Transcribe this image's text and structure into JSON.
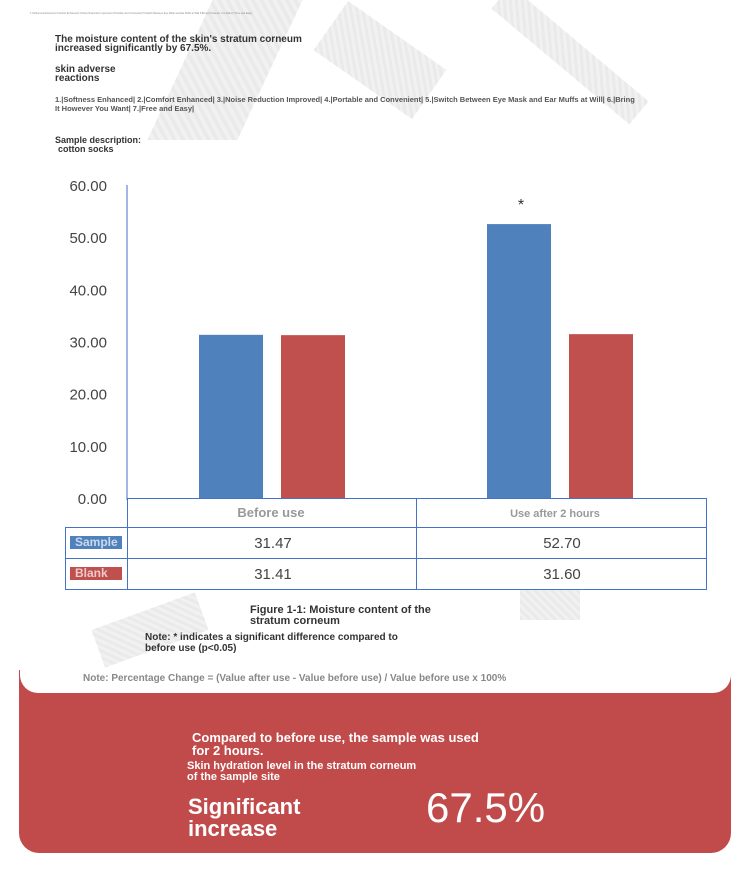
{
  "header": {
    "tiny_text": "1.Softness Enhanced| 2.Comfort Enhanced| 3.Noise Reduction Improved| 4.Portable and Convenient| 5.Switch Between Eye Mask and Ear Muffs at Will| 6.Bring It However You Want| 7.Free and Easy|",
    "moisture_heading": "The moisture content of the skin's stratum corneum increased significantly by 67.5%.",
    "adverse_heading": "skin adverse reactions",
    "benefits": "1.|Softness Enhanced| 2.|Comfort Enhanced| 3.|Noise Reduction Improved| 4.|Portable and Convenient| 5.|Switch Between Eye Mask and Ear Muffs at Will| 6.|Bring It However You Want| 7.|Free and Easy|",
    "sample_label": "Sample description:",
    "sample_value": "cotton socks"
  },
  "chart_data": {
    "type": "bar",
    "categories": [
      "Before use",
      "Use after 2 hours"
    ],
    "series": [
      {
        "name": "Sample",
        "values": [
          31.47,
          52.7
        ],
        "color": "#4f81bd"
      },
      {
        "name": "Blank",
        "values": [
          31.41,
          31.6
        ],
        "color": "#c0504d"
      }
    ],
    "ylim": [
      0,
      60
    ],
    "yticks": [
      "60.00",
      "50.00",
      "40.00",
      "30.00",
      "20.00",
      "10.00",
      "0.00"
    ],
    "annotation": "*",
    "table": {
      "rows": [
        {
          "label": "Sample",
          "values": [
            "31.47",
            "52.70"
          ]
        },
        {
          "label": "Blank",
          "values": [
            "31.41",
            "31.60"
          ]
        }
      ]
    }
  },
  "caption": {
    "figure": "Figure 1-1: Moisture content of the stratum corneum",
    "note": "Note: * indicates a significant difference compared to before use (p<0.05)",
    "percentage_note": "Note: Percentage Change = (Value after use - Value before use) / Value before use x 100%"
  },
  "summary": {
    "compare": "Compared to before use, the sample was used for 2 hours.",
    "hydration": "Skin hydration level in the stratum corneum of the sample site",
    "significant": "Significant increase",
    "percent": "67.5%"
  },
  "colors": {
    "accent_red": "#c14b4b",
    "bar_blue": "#4f81bd",
    "bar_red": "#c0504d",
    "table_line": "#4472c4"
  }
}
